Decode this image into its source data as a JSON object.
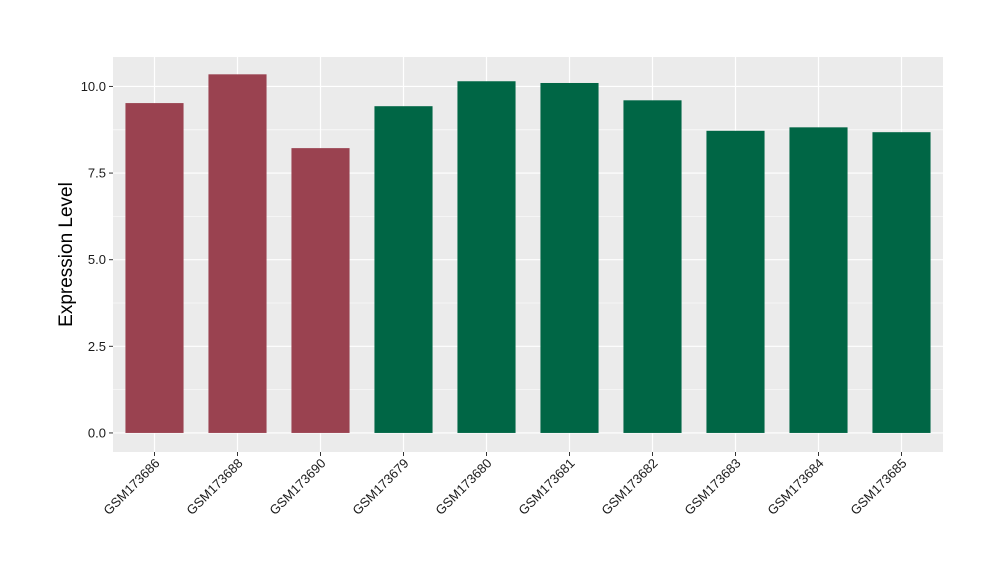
{
  "chart_data": {
    "type": "bar",
    "title": "",
    "xlabel": "",
    "ylabel": "Expression Level",
    "ylim": [
      -0.55,
      10.85
    ],
    "yticks": [
      0.0,
      2.5,
      5.0,
      7.5,
      10.0
    ],
    "ytick_labels": [
      "0.0",
      "2.5",
      "5.0",
      "7.5",
      "10.0"
    ],
    "grid": true,
    "legend": "none",
    "categories": [
      "GSM173686",
      "GSM173688",
      "GSM173690",
      "GSM173679",
      "GSM173680",
      "GSM173681",
      "GSM173682",
      "GSM173683",
      "GSM173684",
      "GSM173685"
    ],
    "values": [
      9.52,
      10.35,
      8.22,
      9.43,
      10.15,
      10.1,
      9.6,
      8.72,
      8.82,
      8.68
    ],
    "bar_colors": [
      "#9a4250",
      "#9a4250",
      "#9a4250",
      "#006645",
      "#006645",
      "#006645",
      "#006645",
      "#006645",
      "#006645",
      "#006645"
    ],
    "panel_background": "#ebebeb",
    "grid_color": "#ffffff"
  }
}
